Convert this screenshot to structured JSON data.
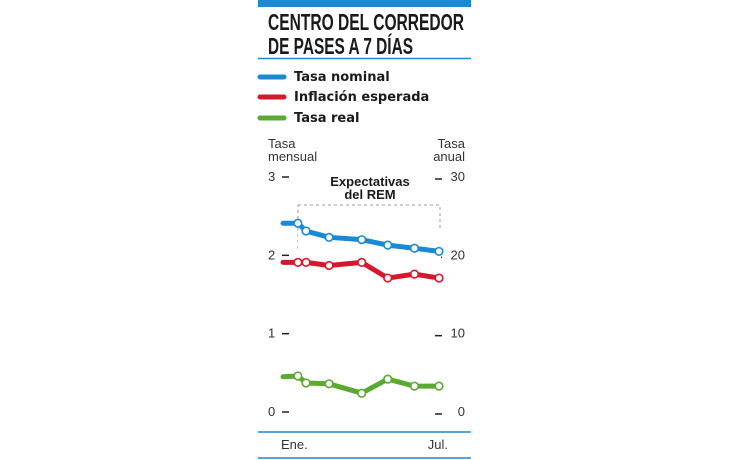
{
  "chart_data": {
    "type": "line",
    "title": "CENTRO DEL CORREDOR DE PASES A 7 DÍAS",
    "title_lines": [
      "CENTRO DEL CORREDOR",
      "DE PASES A 7 DÍAS"
    ],
    "ylabel_left": [
      "Tasa",
      "mensual"
    ],
    "ylabel_right": [
      "Tasa",
      "anual"
    ],
    "ylim_left": [
      0,
      3
    ],
    "ylim_right": [
      0,
      30
    ],
    "yticks_left": [
      "0",
      "1",
      "2",
      "3"
    ],
    "yticks_right": [
      "0",
      "10",
      "20",
      "30"
    ],
    "xtick_labels": [
      "Ene.",
      "Jul."
    ],
    "annotation": [
      "Expectativas",
      "del REM"
    ],
    "legend_position": "top",
    "grid": false,
    "series": [
      {
        "name": "Tasa nominal",
        "color": "#1a8ad4",
        "values": [
          2.41,
          2.41,
          2.31,
          2.23,
          2.2,
          2.13,
          2.09,
          2.05
        ]
      },
      {
        "name": "Inflación esperada",
        "color": "#d7182a",
        "values": [
          1.91,
          1.91,
          1.91,
          1.87,
          1.91,
          1.71,
          1.76,
          1.71
        ]
      },
      {
        "name": "Tasa real",
        "color": "#5aaa32",
        "values": [
          0.45,
          0.46,
          0.37,
          0.36,
          0.24,
          0.42,
          0.33,
          0.33
        ]
      }
    ],
    "x_positions": [
      0,
      1,
      1.55,
      3.1,
      5.3,
      7.05,
      8.85,
      10.5
    ]
  },
  "colors": {
    "accent": "#1a8ad4"
  }
}
